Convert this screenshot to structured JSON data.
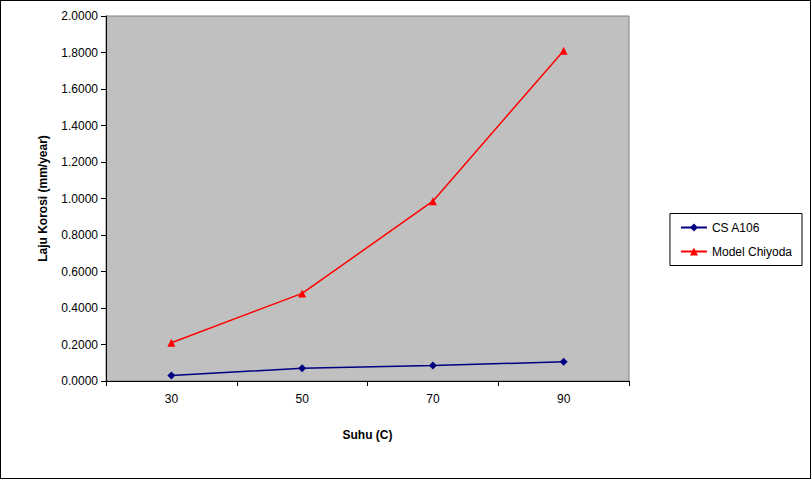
{
  "chart_data": {
    "type": "line",
    "x_label": "Suhu (C)",
    "y_label": "Laju Korosi (mm/year)",
    "categories": [
      "30",
      "50",
      "70",
      "90"
    ],
    "series": [
      {
        "name": "CS A106",
        "color": "#000080",
        "marker": "diamond",
        "values": [
          0.03,
          0.07,
          0.085,
          0.105
        ]
      },
      {
        "name": "Model Chiyoda",
        "color": "#ff0000",
        "marker": "triangle",
        "values": [
          0.21,
          0.48,
          0.985,
          1.81
        ]
      }
    ],
    "ylim": [
      0,
      2
    ],
    "yticks": [
      {
        "value": 0,
        "label": "0.0000"
      },
      {
        "value": 0.2,
        "label": "0.2000"
      },
      {
        "value": 0.4,
        "label": "0.4000"
      },
      {
        "value": 0.6,
        "label": "0.6000"
      },
      {
        "value": 0.8,
        "label": "0.8000"
      },
      {
        "value": 1,
        "label": "1.0000"
      },
      {
        "value": 1.2,
        "label": "1.2000"
      },
      {
        "value": 1.4,
        "label": "1.4000"
      },
      {
        "value": 1.6,
        "label": "1.6000"
      },
      {
        "value": 1.8,
        "label": "1.8000"
      },
      {
        "value": 2,
        "label": "2.0000"
      }
    ],
    "grid": false,
    "legend": "right"
  }
}
